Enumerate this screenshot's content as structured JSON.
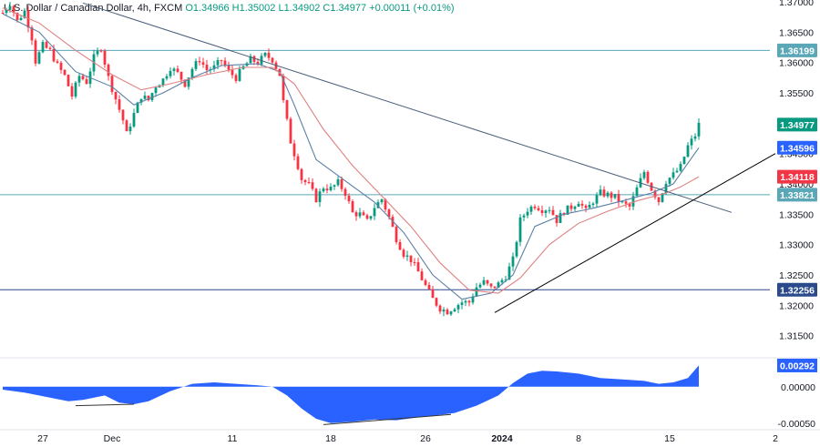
{
  "header": {
    "symbol": "U.S. Dollar / Canadian Dollar, 4h, FXCM",
    "ohlc": "O1.34966  H1.35002  L1.34902  C1.34977  +0.00011 (+0.01%)"
  },
  "colors": {
    "up": "#089981",
    "down": "#f23645",
    "ema_fast": "#5b7fa6",
    "ema_slow": "#e08080",
    "hline": "#5aa7b8",
    "support": "#2a4a8c",
    "trendline_desc": "#4a5e7a",
    "trendline_asc": "#000000",
    "oscillator": "#2962ff"
  },
  "chart_data": {
    "type": "candlestick",
    "x_ticks": [
      "27",
      "Dec",
      "11",
      "18",
      "26",
      "2024",
      "8",
      "15",
      "2"
    ],
    "y_ticks": [
      "1.37000",
      "1.36500",
      "1.36000",
      "1.35500",
      "1.35000",
      "1.34500",
      "1.34000",
      "1.33500",
      "1.33000",
      "1.32500",
      "1.32000",
      "1.31500"
    ],
    "ylim": [
      1.3115,
      1.3703
    ],
    "price_labels": [
      {
        "value": 1.36199,
        "text": "1.36199",
        "color": "#5aa7b8",
        "kind": "level"
      },
      {
        "value": 1.34977,
        "text": "1.34977",
        "color": "#089981",
        "kind": "last"
      },
      {
        "value": 1.34596,
        "text": "1.34596",
        "color": "#2962ff",
        "kind": "ema"
      },
      {
        "value": 1.34118,
        "text": "1.34118",
        "color": "#f23645",
        "kind": "ema"
      },
      {
        "value": 1.33821,
        "text": "1.33821",
        "color": "#5aa7b8",
        "kind": "level"
      },
      {
        "value": 1.32256,
        "text": "1.32256",
        "color": "#2a4a8c",
        "kind": "level"
      }
    ],
    "horizontal_levels": [
      1.36199,
      1.33821,
      1.32256
    ],
    "close_path": [
      [
        0,
        1.3682
      ],
      [
        2,
        1.3698
      ],
      [
        4,
        1.3668
      ],
      [
        6,
        1.3685
      ],
      [
        8,
        1.3641
      ],
      [
        9,
        1.3602
      ],
      [
        11,
        1.3628
      ],
      [
        13,
        1.3619
      ],
      [
        15,
        1.3595
      ],
      [
        17,
        1.3578
      ],
      [
        19,
        1.3545
      ],
      [
        21,
        1.3578
      ],
      [
        23,
        1.3568
      ],
      [
        25,
        1.3608
      ],
      [
        27,
        1.3625
      ],
      [
        29,
        1.3575
      ],
      [
        31,
        1.354
      ],
      [
        33,
        1.3505
      ],
      [
        34,
        1.3482
      ],
      [
        36,
        1.3515
      ],
      [
        38,
        1.3545
      ],
      [
        40,
        1.3538
      ],
      [
        42,
        1.3562
      ],
      [
        44,
        1.3572
      ],
      [
        46,
        1.3592
      ],
      [
        48,
        1.3582
      ],
      [
        50,
        1.3565
      ],
      [
        52,
        1.359
      ],
      [
        54,
        1.3605
      ],
      [
        56,
        1.3588
      ],
      [
        58,
        1.3592
      ],
      [
        60,
        1.3604
      ],
      [
        62,
        1.3585
      ],
      [
        64,
        1.3575
      ],
      [
        66,
        1.3592
      ],
      [
        68,
        1.3605
      ],
      [
        70,
        1.36
      ],
      [
        72,
        1.3612
      ],
      [
        74,
        1.3605
      ],
      [
        76,
        1.358
      ],
      [
        77,
        1.3535
      ],
      [
        79,
        1.347
      ],
      [
        81,
        1.343
      ],
      [
        82,
        1.3408
      ],
      [
        84,
        1.3398
      ],
      [
        86,
        1.3375
      ],
      [
        88,
        1.3395
      ],
      [
        90,
        1.3392
      ],
      [
        92,
        1.3402
      ],
      [
        94,
        1.3385
      ],
      [
        96,
        1.3352
      ],
      [
        98,
        1.335
      ],
      [
        100,
        1.3338
      ],
      [
        102,
        1.3362
      ],
      [
        104,
        1.3375
      ],
      [
        106,
        1.3345
      ],
      [
        108,
        1.331
      ],
      [
        110,
        1.3285
      ],
      [
        112,
        1.3275
      ],
      [
        114,
        1.3255
      ],
      [
        116,
        1.3232
      ],
      [
        118,
        1.321
      ],
      [
        120,
        1.3195
      ],
      [
        122,
        1.319
      ],
      [
        124,
        1.3198
      ],
      [
        126,
        1.3205
      ],
      [
        128,
        1.3205
      ],
      [
        130,
        1.323
      ],
      [
        132,
        1.3238
      ],
      [
        134,
        1.3228
      ],
      [
        136,
        1.3235
      ],
      [
        138,
        1.3248
      ],
      [
        140,
        1.3275
      ],
      [
        142,
        1.334
      ],
      [
        144,
        1.3358
      ],
      [
        146,
        1.3365
      ],
      [
        148,
        1.3358
      ],
      [
        150,
        1.336
      ],
      [
        152,
        1.334
      ],
      [
        154,
        1.3355
      ],
      [
        156,
        1.3362
      ],
      [
        158,
        1.3372
      ],
      [
        160,
        1.3355
      ],
      [
        162,
        1.3372
      ],
      [
        164,
        1.3385
      ],
      [
        166,
        1.3382
      ],
      [
        168,
        1.3378
      ],
      [
        170,
        1.3368
      ],
      [
        172,
        1.3362
      ],
      [
        174,
        1.3392
      ],
      [
        176,
        1.342
      ],
      [
        178,
        1.3392
      ],
      [
        180,
        1.3372
      ],
      [
        182,
        1.3405
      ],
      [
        184,
        1.3415
      ],
      [
        186,
        1.3428
      ],
      [
        188,
        1.3462
      ],
      [
        190,
        1.348
      ],
      [
        191,
        1.34977
      ]
    ],
    "ema_fast": [
      [
        0,
        1.368
      ],
      [
        10,
        1.365
      ],
      [
        20,
        1.3585
      ],
      [
        30,
        1.356
      ],
      [
        36,
        1.353
      ],
      [
        44,
        1.355
      ],
      [
        52,
        1.3575
      ],
      [
        60,
        1.3595
      ],
      [
        70,
        1.3598
      ],
      [
        76,
        1.3585
      ],
      [
        80,
        1.353
      ],
      [
        86,
        1.344
      ],
      [
        94,
        1.3405
      ],
      [
        102,
        1.337
      ],
      [
        110,
        1.332
      ],
      [
        118,
        1.325
      ],
      [
        126,
        1.321
      ],
      [
        134,
        1.322
      ],
      [
        140,
        1.325
      ],
      [
        146,
        1.333
      ],
      [
        154,
        1.335
      ],
      [
        162,
        1.336
      ],
      [
        170,
        1.3372
      ],
      [
        178,
        1.3385
      ],
      [
        184,
        1.34
      ],
      [
        191,
        1.34596
      ]
    ],
    "ema_slow": [
      [
        0,
        1.369
      ],
      [
        10,
        1.3665
      ],
      [
        20,
        1.362
      ],
      [
        30,
        1.358
      ],
      [
        38,
        1.3555
      ],
      [
        46,
        1.3565
      ],
      [
        56,
        1.358
      ],
      [
        66,
        1.3592
      ],
      [
        74,
        1.3592
      ],
      [
        80,
        1.3565
      ],
      [
        88,
        1.349
      ],
      [
        96,
        1.343
      ],
      [
        104,
        1.338
      ],
      [
        112,
        1.333
      ],
      [
        120,
        1.327
      ],
      [
        128,
        1.3225
      ],
      [
        136,
        1.322
      ],
      [
        142,
        1.3245
      ],
      [
        150,
        1.33
      ],
      [
        158,
        1.3335
      ],
      [
        166,
        1.3355
      ],
      [
        174,
        1.3372
      ],
      [
        182,
        1.3385
      ],
      [
        186,
        1.3395
      ],
      [
        191,
        1.34118
      ]
    ],
    "trendlines": [
      {
        "kind": "descending",
        "from": [
          22,
          1.3698
        ],
        "to": [
          200,
          1.3353
        ]
      },
      {
        "kind": "ascending",
        "from": [
          135,
          1.3188
        ],
        "to": [
          212,
          1.345
        ]
      }
    ],
    "oscillator": {
      "labels": [
        "0.00292",
        "0.00000",
        "-0.00050"
      ],
      "zero": 0.0,
      "ylim": [
        -0.0054,
        0.0036
      ],
      "current": 0.00292,
      "values": [
        [
          0,
          -0.0004
        ],
        [
          6,
          -0.0008
        ],
        [
          12,
          -0.0014
        ],
        [
          18,
          -0.002
        ],
        [
          22,
          -0.0018
        ],
        [
          28,
          -0.0012
        ],
        [
          32,
          -0.0022
        ],
        [
          36,
          -0.0024
        ],
        [
          40,
          -0.002
        ],
        [
          46,
          -0.0006
        ],
        [
          52,
          0.0004
        ],
        [
          58,
          0.0006
        ],
        [
          64,
          0.0004
        ],
        [
          70,
          0.0002
        ],
        [
          74,
          0.0
        ],
        [
          78,
          -0.0012
        ],
        [
          82,
          -0.003
        ],
        [
          86,
          -0.0044
        ],
        [
          90,
          -0.005
        ],
        [
          96,
          -0.0048
        ],
        [
          102,
          -0.0045
        ],
        [
          108,
          -0.0046
        ],
        [
          114,
          -0.0042
        ],
        [
          118,
          -0.004
        ],
        [
          124,
          -0.0036
        ],
        [
          130,
          -0.0026
        ],
        [
          136,
          -0.0012
        ],
        [
          140,
          0.0005
        ],
        [
          144,
          0.0018
        ],
        [
          148,
          0.0022
        ],
        [
          152,
          0.0021
        ],
        [
          158,
          0.0018
        ],
        [
          164,
          0.0012
        ],
        [
          170,
          0.001
        ],
        [
          176,
          0.0008
        ],
        [
          180,
          0.0004
        ],
        [
          184,
          0.0006
        ],
        [
          188,
          0.0012
        ],
        [
          191,
          0.00292
        ]
      ]
    }
  }
}
